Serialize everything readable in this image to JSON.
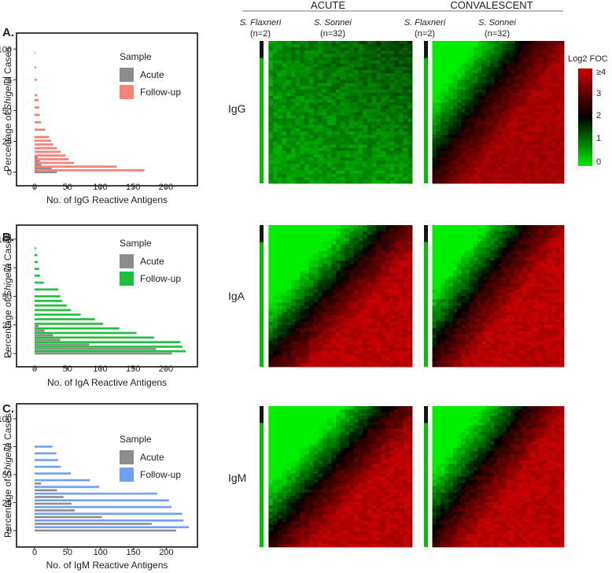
{
  "headers": {
    "acute": "ACUTE",
    "convalescent": "CONVALESCENT"
  },
  "columns": {
    "flexneri_name": "S. Flaxneri",
    "flexneri_n": "(n=2)",
    "sonnei_name": "S. Sonnei",
    "sonnei_n": "(n=32)"
  },
  "colorbar": {
    "title": "Log2 FOC",
    "ticks": [
      "≥4",
      "3",
      "2",
      "1",
      "0"
    ],
    "colors": [
      "#cc0000",
      "#000000",
      "#00ee00"
    ]
  },
  "ylabel_prefix": "Percentage of ",
  "ylabel_italic": "Shigella",
  "ylabel_suffix": " Cases",
  "chart_data": [
    {
      "type": "bar",
      "orientation": "horizontal",
      "panel": "A.",
      "row_label": "IgG",
      "xlabel": "No. of IgG Reactive Antigens",
      "xlim": [
        0,
        230
      ],
      "ylim": [
        -4,
        104
      ],
      "xticks": [
        "0",
        "50",
        "100",
        "150",
        "200"
      ],
      "yticks": [
        "0",
        "25",
        "50",
        "75",
        "100"
      ],
      "legend": {
        "title": "Sample",
        "placement": "top-right"
      },
      "series": [
        {
          "name": "Acute",
          "color": "#8c8c8c",
          "y": [
            0,
            3,
            6,
            9,
            12
          ],
          "values": [
            34,
            26,
            10,
            8,
            5
          ]
        },
        {
          "name": "Follow-up",
          "color": "#f4847a",
          "y": [
            1.5,
            4.5,
            7.5,
            10.5,
            13.5,
            16.5,
            19.5,
            22.5,
            25.5,
            28.5,
            34.5,
            40.5,
            46.5,
            52.5,
            58.5,
            62.5,
            75,
            85,
            97
          ],
          "values": [
            167,
            125,
            60,
            52,
            47,
            40,
            34,
            28,
            25,
            22,
            16,
            10,
            8,
            7,
            6,
            4,
            3,
            2,
            1
          ]
        }
      ]
    },
    {
      "type": "bar",
      "orientation": "horizontal",
      "panel": "B.",
      "row_label": "IgA",
      "xlabel": "No. of IgA Reactive Antigens",
      "xlim": [
        0,
        230
      ],
      "ylim": [
        -4,
        104
      ],
      "xticks": [
        "0",
        "50",
        "100",
        "150",
        "200"
      ],
      "yticks": [
        "0",
        "25",
        "50",
        "75",
        "100"
      ],
      "legend": {
        "title": "Sample",
        "placement": "top-right"
      },
      "series": [
        {
          "name": "Acute",
          "color": "#8c8c8c",
          "y": [
            0,
            4,
            8,
            12,
            16,
            20,
            24
          ],
          "values": [
            209,
            185,
            83,
            39,
            28,
            15,
            6
          ]
        },
        {
          "name": "Follow-up",
          "color": "#1ebf3c",
          "y": [
            2,
            6,
            10,
            14,
            18,
            22,
            26,
            30,
            34,
            38,
            42,
            46,
            50,
            56,
            62,
            68,
            74,
            80,
            86,
            92
          ],
          "values": [
            230,
            225,
            222,
            182,
            155,
            129,
            104,
            92,
            70,
            55,
            49,
            42,
            39,
            36,
            14,
            8,
            7,
            5,
            4,
            2
          ]
        }
      ]
    },
    {
      "type": "bar",
      "orientation": "horizontal",
      "panel": "C.",
      "row_label": "IgM",
      "xlabel": "No. of IgM Reactive Antigens",
      "xlim": [
        0,
        240
      ],
      "ylim": [
        -7,
        107
      ],
      "xticks": [
        "0",
        "50",
        "100",
        "150",
        "200"
      ],
      "yticks": [
        "0",
        "25",
        "50",
        "75",
        "100"
      ],
      "legend": {
        "title": "Sample",
        "placement": "top-right"
      },
      "series": [
        {
          "name": "Acute",
          "color": "#8c8c8c",
          "y": [
            0,
            6,
            12,
            18,
            24,
            30,
            36,
            42
          ],
          "values": [
            215,
            178,
            102,
            61,
            56,
            44,
            34,
            10
          ]
        },
        {
          "name": "Follow-up",
          "color": "#6f9ef5",
          "y": [
            3,
            9,
            15,
            21,
            27,
            33,
            39,
            45,
            51,
            57,
            63,
            69,
            75
          ],
          "values": [
            234,
            226,
            224,
            208,
            204,
            186,
            98,
            84,
            55,
            40,
            36,
            33,
            27
          ]
        }
      ]
    }
  ]
}
